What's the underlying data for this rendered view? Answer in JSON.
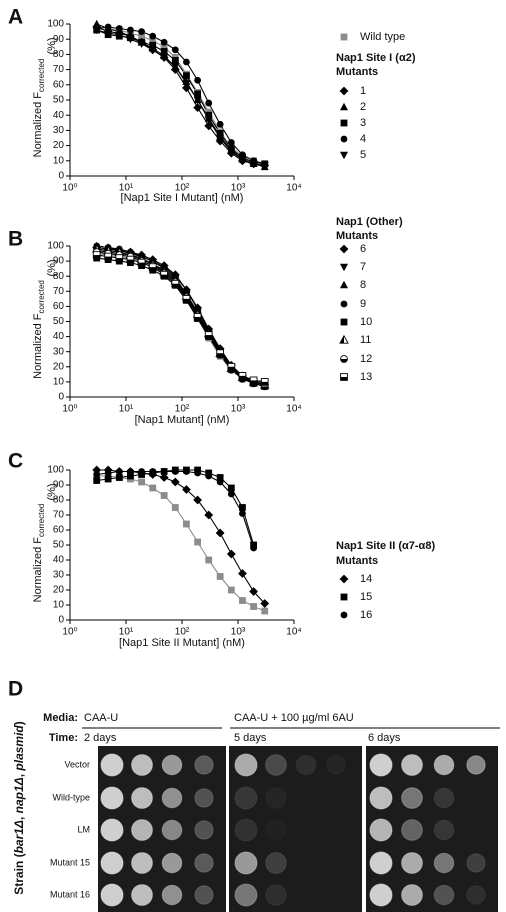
{
  "chart_data": [
    {
      "type": "scatter",
      "panel_label": "A",
      "xlabel": "[Nap1 Site I Mutant] (nM)",
      "ylabel": "Normalized F",
      "ylabel_sub": "corrected",
      "ylabel_unit": "(%)",
      "log_x": true,
      "fit_lines": true,
      "x": [
        3,
        4.8,
        7.6,
        12,
        19,
        30,
        48,
        76,
        120,
        190,
        300,
        480,
        760,
        1200,
        1900,
        3000
      ],
      "xlim": [
        1,
        10000
      ],
      "xticks": [
        {
          "value": 1,
          "label": "10⁰"
        },
        {
          "value": 10,
          "label": "10¹"
        },
        {
          "value": 100,
          "label": "10²"
        },
        {
          "value": 1000,
          "label": "10³"
        },
        {
          "value": 10000,
          "label": "10⁴"
        }
      ],
      "ylim": [
        0,
        100
      ],
      "yticks": [
        0,
        10,
        20,
        30,
        40,
        50,
        60,
        70,
        80,
        90,
        100
      ],
      "legend_heading": [
        "Nap1 Site I (α2)",
        "Mutants"
      ],
      "series": [
        {
          "name": "Wild type",
          "color": "#8c8c8c",
          "marker": "square",
          "values": [
            97,
            96,
            96,
            94,
            92,
            89,
            85,
            78,
            67,
            55,
            42,
            29,
            19,
            13,
            10,
            8
          ]
        },
        {
          "name": "1",
          "color": "#000000",
          "marker": "diamond",
          "values": [
            98,
            95,
            94,
            92,
            88,
            83,
            78,
            70,
            58,
            45,
            33,
            23,
            15,
            10,
            8,
            7
          ]
        },
        {
          "name": "2",
          "color": "#000000",
          "marker": "triangle",
          "values": [
            100,
            97,
            95,
            92,
            88,
            84,
            79,
            72,
            62,
            50,
            38,
            26,
            17,
            11,
            8,
            6
          ]
        },
        {
          "name": "3",
          "color": "#000000",
          "marker": "square",
          "values": [
            96,
            93,
            92,
            91,
            88,
            86,
            82,
            76,
            66,
            54,
            40,
            28,
            18,
            12,
            9,
            8
          ]
        },
        {
          "name": "4",
          "color": "#000000",
          "marker": "circle",
          "values": [
            97,
            98,
            97,
            96,
            95,
            92,
            88,
            83,
            75,
            63,
            48,
            34,
            22,
            14,
            10,
            8
          ]
        },
        {
          "name": "5",
          "color": "#000000",
          "marker": "triangle-down",
          "values": [
            96,
            94,
            93,
            90,
            87,
            83,
            78,
            72,
            61,
            50,
            37,
            25,
            16,
            11,
            8,
            7
          ]
        }
      ]
    },
    {
      "type": "scatter",
      "panel_label": "B",
      "xlabel": "[Nap1 Mutant] (nM)",
      "ylabel": "Normalized F",
      "ylabel_sub": "corrected",
      "ylabel_unit": "(%)",
      "log_x": true,
      "fit_lines": true,
      "x": [
        3,
        4.8,
        7.6,
        12,
        19,
        30,
        48,
        76,
        120,
        190,
        300,
        480,
        760,
        1200,
        1900,
        3000
      ],
      "xlim": [
        1,
        10000
      ],
      "xticks": [
        {
          "value": 1,
          "label": "10⁰"
        },
        {
          "value": 10,
          "label": "10¹"
        },
        {
          "value": 100,
          "label": "10²"
        },
        {
          "value": 1000,
          "label": "10³"
        },
        {
          "value": 10000,
          "label": "10⁴"
        }
      ],
      "ylim": [
        0,
        100
      ],
      "yticks": [
        0,
        10,
        20,
        30,
        40,
        50,
        60,
        70,
        80,
        90,
        100
      ],
      "legend_heading": [
        "Nap1 (Other)",
        "Mutants"
      ],
      "series": [
        {
          "color": "#8c8c8c",
          "marker": "square",
          "values": [
            95,
            94,
            93,
            92,
            90,
            87,
            83,
            76,
            65,
            52,
            39,
            27,
            18,
            12,
            9,
            7
          ]
        },
        {
          "name": "6",
          "color": "#000000",
          "marker": "diamond",
          "values": [
            99,
            98,
            97,
            96,
            94,
            91,
            87,
            81,
            71,
            59,
            45,
            32,
            21,
            14,
            10,
            8
          ]
        },
        {
          "name": "7",
          "color": "#000000",
          "marker": "triangle-down",
          "values": [
            97,
            96,
            95,
            94,
            92,
            88,
            84,
            78,
            68,
            56,
            42,
            29,
            19,
            13,
            10,
            9
          ]
        },
        {
          "name": "8",
          "color": "#000000",
          "marker": "triangle",
          "values": [
            100,
            99,
            97,
            95,
            93,
            90,
            86,
            80,
            71,
            58,
            44,
            31,
            20,
            13,
            9,
            7
          ]
        },
        {
          "name": "9",
          "color": "#000000",
          "marker": "circle",
          "values": [
            100,
            99,
            98,
            96,
            93,
            90,
            85,
            79,
            68,
            56,
            43,
            30,
            20,
            14,
            11,
            10
          ]
        },
        {
          "name": "10",
          "color": "#000000",
          "marker": "square",
          "values": [
            92,
            91,
            90,
            89,
            87,
            84,
            80,
            74,
            64,
            52,
            40,
            28,
            19,
            13,
            11,
            10
          ]
        },
        {
          "name": "11",
          "color": "#000000",
          "marker": "half-triangle",
          "values": [
            98,
            97,
            96,
            94,
            91,
            88,
            83,
            77,
            67,
            55,
            42,
            29,
            19,
            13,
            10,
            8
          ]
        },
        {
          "name": "12",
          "color": "#000000",
          "marker": "half-circle",
          "values": [
            96,
            95,
            94,
            93,
            90,
            87,
            82,
            76,
            66,
            54,
            41,
            28,
            18,
            12,
            9,
            7
          ]
        },
        {
          "name": "13",
          "color": "#000000",
          "marker": "half-square",
          "values": [
            94,
            93,
            92,
            91,
            89,
            86,
            81,
            75,
            65,
            53,
            41,
            29,
            20,
            14,
            11,
            10
          ]
        }
      ]
    },
    {
      "type": "scatter",
      "panel_label": "C",
      "xlabel": "[Nap1 Site II Mutant] (nM)",
      "ylabel": "Normalized F",
      "ylabel_sub": "corrected",
      "ylabel_unit": "(%)",
      "log_x": true,
      "fit_lines": true,
      "x": [
        3,
        4.8,
        7.6,
        12,
        19,
        30,
        48,
        76,
        120,
        190,
        300,
        480,
        760,
        1200,
        1900,
        3000
      ],
      "xlim": [
        1,
        10000
      ],
      "xticks": [
        {
          "value": 1,
          "label": "10⁰"
        },
        {
          "value": 10,
          "label": "10¹"
        },
        {
          "value": 100,
          "label": "10²"
        },
        {
          "value": 1000,
          "label": "10³"
        },
        {
          "value": 10000,
          "label": "10⁴"
        }
      ],
      "ylim": [
        0,
        100
      ],
      "yticks": [
        0,
        10,
        20,
        30,
        40,
        50,
        60,
        70,
        80,
        90,
        100
      ],
      "legend_heading": [
        "Nap1 Site II (α7-α8)",
        "Mutants"
      ],
      "series": [
        {
          "color": "#8c8c8c",
          "marker": "square",
          "values": [
            96,
            96,
            95,
            94,
            92,
            88,
            83,
            75,
            64,
            52,
            40,
            29,
            20,
            13,
            9,
            6
          ]
        },
        {
          "name": "14",
          "color": "#000000",
          "marker": "diamond",
          "values": [
            100,
            100,
            99,
            99,
            98,
            97,
            95,
            92,
            87,
            80,
            70,
            58,
            44,
            31,
            19,
            11
          ]
        },
        {
          "name": "15",
          "color": "#000000",
          "marker": "square",
          "values": [
            93,
            94,
            95,
            96,
            97,
            98,
            99,
            100,
            100,
            100,
            98,
            95,
            88,
            75,
            50,
            null
          ]
        },
        {
          "name": "16",
          "color": "#000000",
          "marker": "circle",
          "values": [
            97,
            98,
            99,
            99,
            99,
            99,
            99,
            99,
            99,
            98,
            96,
            92,
            84,
            71,
            48,
            null
          ]
        }
      ]
    }
  ],
  "panel_d": {
    "label": "D",
    "media_label": "Media:",
    "media": [
      "CAA-U",
      "CAA-U + 100 µg/ml 6AU"
    ],
    "time_label": "Time:",
    "times": [
      "2 days",
      "5 days",
      "6 days"
    ],
    "strains": [
      "Vector",
      "Wild-type",
      "LM",
      "Mutant 15",
      "Mutant 16"
    ],
    "ylabel": [
      "Strain (",
      "bar1Δ",
      ", ",
      "nap1Δ",
      ", ",
      "plasmid",
      ")"
    ]
  }
}
